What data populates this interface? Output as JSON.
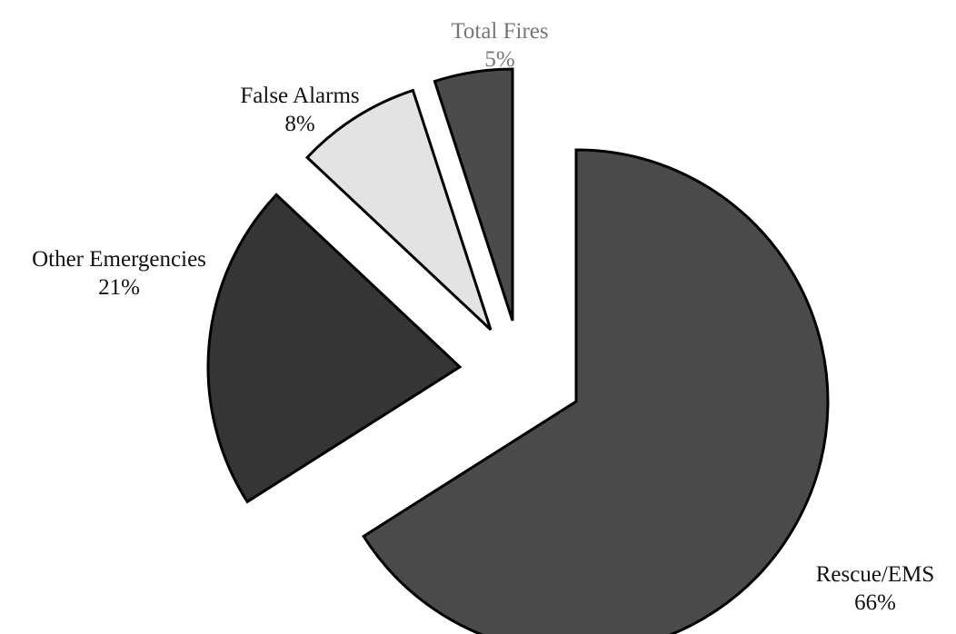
{
  "chart_data": {
    "type": "pie",
    "title": "",
    "exploded": true,
    "slices": [
      {
        "label": "Rescue/EMS",
        "value": 66,
        "value_label": "66%",
        "color": "#4a4a4a",
        "label_color": "#111111"
      },
      {
        "label": "Other Emergencies",
        "value": 21,
        "value_label": "21%",
        "color": "#353535",
        "label_color": "#111111"
      },
      {
        "label": "False Alarms",
        "value": 8,
        "value_label": "8%",
        "color": "#e3e3e3",
        "label_color": "#111111"
      },
      {
        "label": "Total Fires",
        "value": 5,
        "value_label": "5%",
        "color": "#4b4b4b",
        "label_color": "#777777"
      }
    ]
  }
}
